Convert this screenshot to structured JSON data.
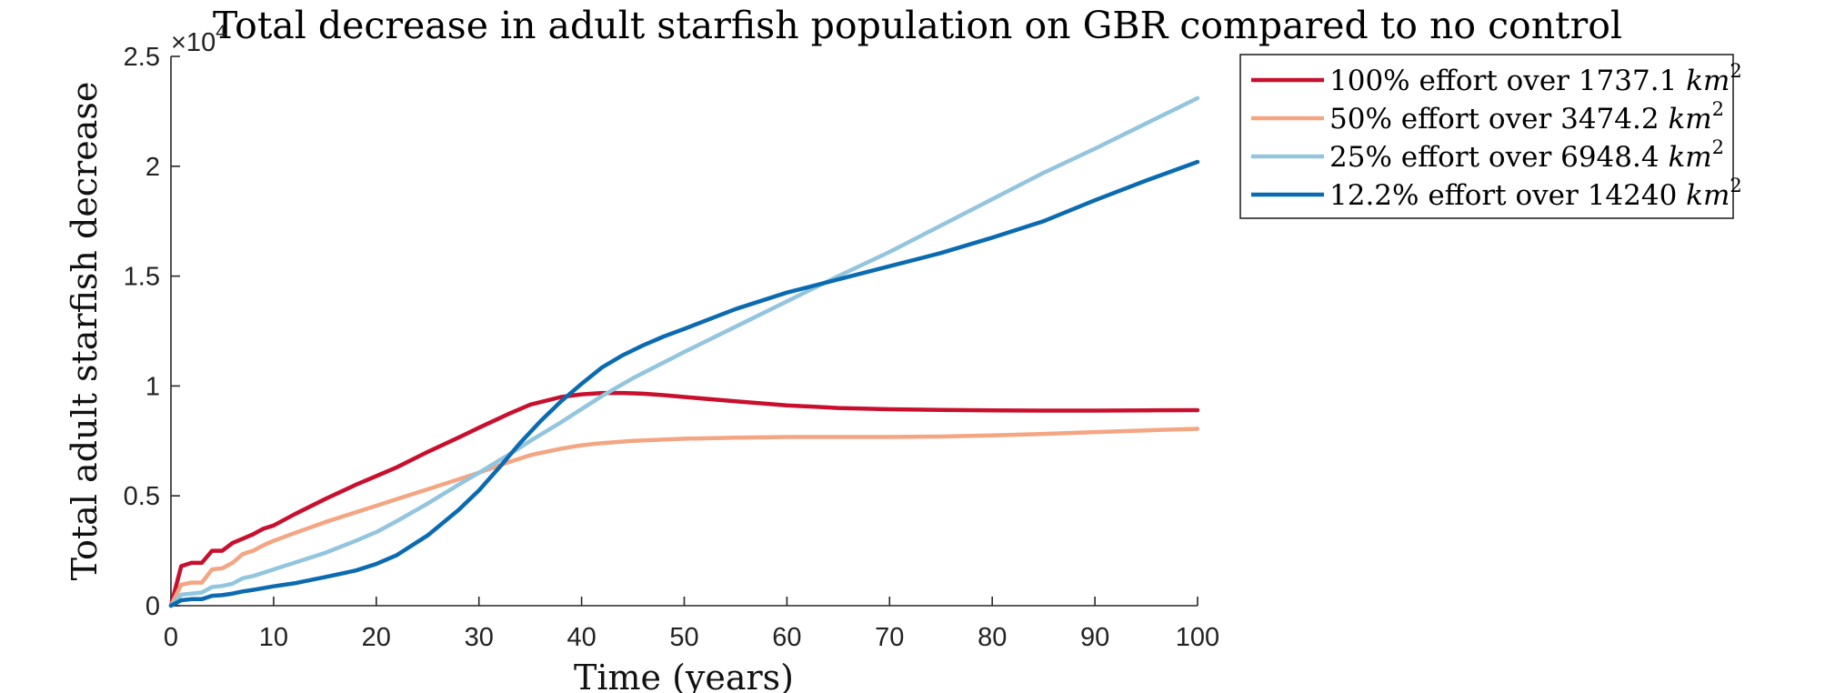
{
  "chart_data": {
    "type": "line",
    "title": "Total decrease in adult starfish population on GBR compared to no control",
    "xlabel": "Time (years)",
    "ylabel": "Total adult starfish decrease",
    "y_exponent_label": "×10",
    "y_exponent_power": "4",
    "xlim": [
      0,
      100
    ],
    "ylim": [
      0,
      25000
    ],
    "x_ticks": [
      0,
      10,
      20,
      30,
      40,
      50,
      60,
      70,
      80,
      90,
      100
    ],
    "x_tick_labels": [
      "0",
      "10",
      "20",
      "30",
      "40",
      "50",
      "60",
      "70",
      "80",
      "90",
      "100"
    ],
    "y_ticks": [
      0,
      5000,
      10000,
      15000,
      20000,
      25000
    ],
    "y_tick_labels": [
      "0",
      "0.5",
      "1",
      "1.5",
      "2",
      "2.5"
    ],
    "grid": false,
    "legend_position": "top-right outside",
    "series": [
      {
        "name": "100% effort over 1737.1 km²",
        "legend_text": "100% effort over 1737.1 ",
        "legend_unit": "km",
        "legend_sup": "2",
        "color": "#c8102e",
        "x": [
          0,
          1,
          2,
          3,
          4,
          5,
          6,
          7,
          8,
          9,
          10,
          12,
          15,
          18,
          20,
          22,
          25,
          28,
          30,
          33,
          35,
          38,
          40,
          42,
          44,
          46,
          48,
          50,
          55,
          60,
          65,
          70,
          75,
          80,
          85,
          90,
          95,
          100
        ],
        "y": [
          0,
          1800,
          1950,
          1950,
          2500,
          2500,
          2850,
          3050,
          3250,
          3500,
          3650,
          4150,
          4850,
          5500,
          5900,
          6300,
          7000,
          7650,
          8100,
          8750,
          9150,
          9500,
          9620,
          9680,
          9680,
          9650,
          9580,
          9500,
          9300,
          9120,
          9000,
          8940,
          8910,
          8890,
          8880,
          8880,
          8890,
          8900
        ]
      },
      {
        "name": "50% effort over 3474.2 km²",
        "legend_text": "50% effort over 3474.2 ",
        "legend_unit": "km",
        "legend_sup": "2",
        "color": "#f4a582",
        "x": [
          0,
          1,
          2,
          3,
          4,
          5,
          6,
          7,
          8,
          9,
          10,
          12,
          15,
          18,
          20,
          22,
          25,
          28,
          30,
          33,
          35,
          38,
          40,
          42,
          45,
          50,
          55,
          60,
          65,
          70,
          75,
          80,
          85,
          90,
          95,
          100
        ],
        "y": [
          0,
          950,
          1050,
          1050,
          1650,
          1700,
          1950,
          2350,
          2500,
          2750,
          2950,
          3300,
          3800,
          4250,
          4550,
          4850,
          5300,
          5750,
          6050,
          6550,
          6850,
          7150,
          7300,
          7400,
          7500,
          7600,
          7650,
          7680,
          7680,
          7680,
          7700,
          7750,
          7820,
          7900,
          7980,
          8050
        ]
      },
      {
        "name": "25% effort over 6948.4 km²",
        "legend_text": "25% effort over 6948.4 ",
        "legend_unit": "km",
        "legend_sup": "2",
        "color": "#92c5de",
        "x": [
          0,
          1,
          2,
          3,
          4,
          5,
          6,
          7,
          8,
          9,
          10,
          12,
          15,
          18,
          20,
          22,
          25,
          28,
          30,
          33,
          35,
          38,
          40,
          42,
          45,
          50,
          55,
          60,
          65,
          70,
          75,
          80,
          85,
          90,
          95,
          100
        ],
        "y": [
          0,
          500,
          550,
          600,
          850,
          900,
          1000,
          1250,
          1350,
          1500,
          1650,
          1950,
          2400,
          2950,
          3350,
          3850,
          4650,
          5500,
          6050,
          6900,
          7500,
          8350,
          8950,
          9550,
          10350,
          11550,
          12700,
          13850,
          15000,
          16100,
          17300,
          18500,
          19700,
          20800,
          21950,
          23100
        ]
      },
      {
        "name": "12.2% effort over 14240 km²",
        "legend_text": "12.2% effort over 14240 ",
        "legend_unit": "km",
        "legend_sup": "2",
        "color": "#0a6bb0",
        "x": [
          0,
          1,
          2,
          3,
          4,
          5,
          6,
          7,
          8,
          9,
          10,
          12,
          15,
          18,
          20,
          22,
          25,
          28,
          30,
          32,
          34,
          36,
          38,
          40,
          42,
          44,
          46,
          48,
          50,
          55,
          60,
          65,
          70,
          75,
          80,
          85,
          90,
          95,
          100
        ],
        "y": [
          0,
          250,
          300,
          300,
          450,
          480,
          550,
          650,
          720,
          800,
          880,
          1020,
          1300,
          1600,
          1900,
          2300,
          3200,
          4350,
          5250,
          6300,
          7400,
          8400,
          9300,
          10100,
          10850,
          11400,
          11850,
          12250,
          12600,
          13500,
          14250,
          14850,
          15450,
          16050,
          16750,
          17500,
          18450,
          19350,
          20200
        ]
      }
    ]
  }
}
